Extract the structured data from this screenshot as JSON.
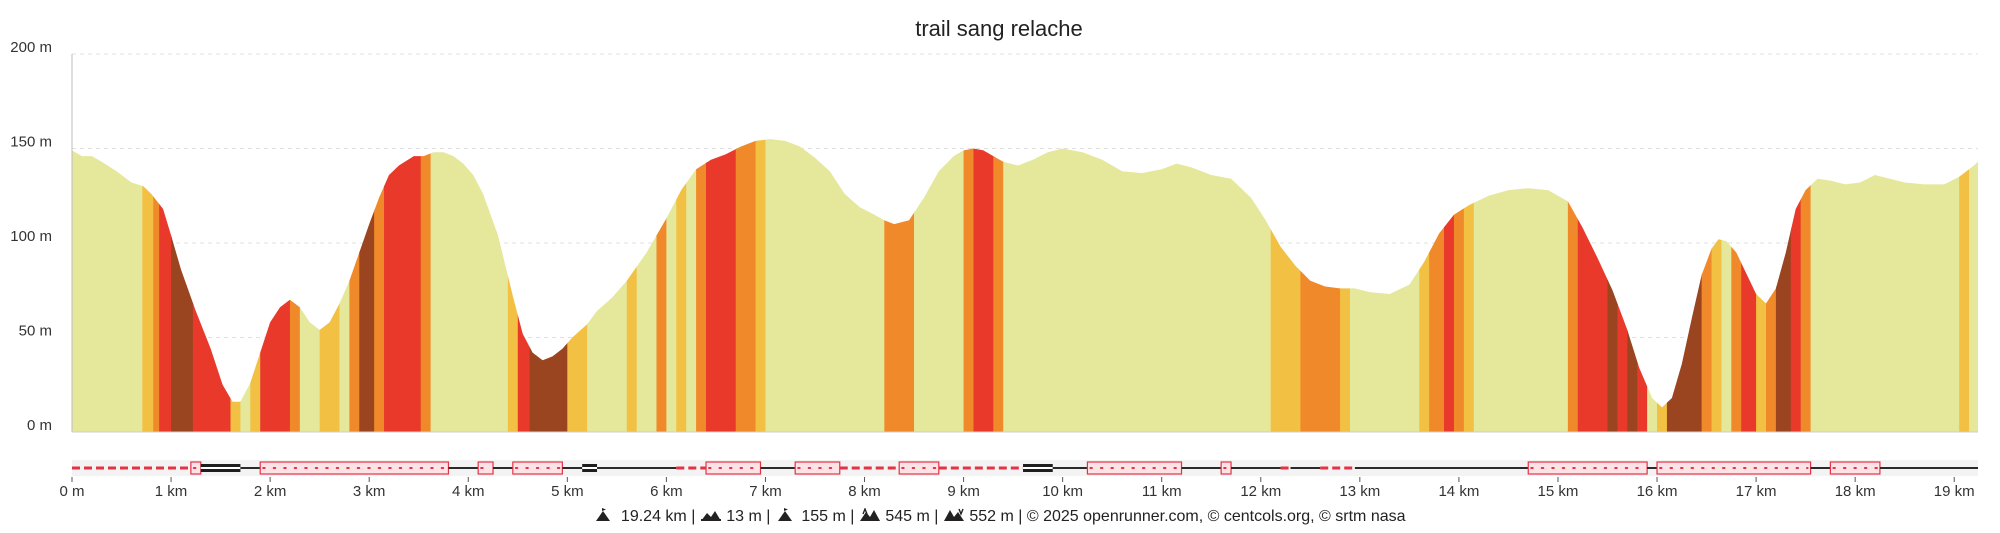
{
  "chart_data": {
    "type": "area",
    "title": "trail sang relache",
    "xlabel": "",
    "ylabel": "",
    "x_unit": "km",
    "y_unit": "m",
    "xlim": [
      0,
      19.24
    ],
    "ylim": [
      0,
      200
    ],
    "yticks": [
      "0 m",
      "50 m",
      "100 m",
      "150 m",
      "200 m"
    ],
    "xticks": [
      "0 m",
      "1 km",
      "2 km",
      "3 km",
      "4 km",
      "5 km",
      "6 km",
      "7 km",
      "8 km",
      "9 km",
      "10 km",
      "11 km",
      "12 km",
      "13 km",
      "14 km",
      "15 km",
      "16 km",
      "17 km",
      "18 km",
      "19 km"
    ],
    "grid": true,
    "series": [
      {
        "x": [
          0,
          0.1,
          0.2,
          0.3,
          0.45,
          0.6,
          0.72,
          0.8,
          0.92,
          1.0,
          1.1,
          1.25,
          1.4,
          1.52,
          1.62,
          1.7,
          1.8,
          1.9,
          2.0,
          2.1,
          2.2,
          2.3,
          2.4,
          2.5,
          2.6,
          2.7,
          2.8,
          2.9,
          3.0,
          3.1,
          3.2,
          3.3,
          3.45,
          3.55,
          3.65,
          3.75,
          3.85,
          3.95,
          4.05,
          4.15,
          4.3,
          4.45,
          4.55,
          4.65,
          4.75,
          4.85,
          4.95,
          5.05,
          5.2,
          5.3,
          5.45,
          5.6,
          5.8,
          6.0,
          6.15,
          6.3,
          6.45,
          6.6,
          6.75,
          6.9,
          7.05,
          7.2,
          7.35,
          7.5,
          7.65,
          7.8,
          7.95,
          8.1,
          8.2,
          8.3,
          8.45,
          8.6,
          8.75,
          8.9,
          9.0,
          9.1,
          9.2,
          9.3,
          9.4,
          9.55,
          9.7,
          9.85,
          10.0,
          10.2,
          10.4,
          10.6,
          10.8,
          11.0,
          11.15,
          11.3,
          11.5,
          11.7,
          11.9,
          12.05,
          12.2,
          12.35,
          12.5,
          12.65,
          12.8,
          12.95,
          13.1,
          13.3,
          13.5,
          13.65,
          13.8,
          13.95,
          14.1,
          14.3,
          14.5,
          14.7,
          14.9,
          15.1,
          15.25,
          15.4,
          15.55,
          15.7,
          15.82,
          15.95,
          16.05,
          16.15,
          16.25,
          16.35,
          16.45,
          16.55,
          16.62,
          16.7,
          16.8,
          16.9,
          17.0,
          17.1,
          17.2,
          17.3,
          17.4,
          17.5,
          17.62,
          17.75,
          17.9,
          18.05,
          18.2,
          18.35,
          18.5,
          18.7,
          18.9,
          19.05,
          19.2,
          19.24
        ],
        "y": [
          149,
          146,
          146,
          143,
          138,
          132,
          130,
          126,
          118,
          104,
          86,
          64,
          44,
          25,
          16,
          16,
          26,
          42,
          58,
          66,
          70,
          66,
          58,
          54,
          58,
          68,
          80,
          95,
          110,
          124,
          136,
          141,
          146,
          146,
          148,
          148,
          146,
          142,
          136,
          126,
          104,
          72,
          52,
          42,
          38,
          40,
          44,
          50,
          57,
          64,
          71,
          80,
          95,
          113,
          128,
          139,
          144,
          147,
          151,
          154,
          155,
          154,
          151,
          145,
          138,
          126,
          119,
          115,
          112,
          110,
          112,
          124,
          138,
          146,
          149,
          150,
          149,
          146,
          143,
          141,
          144,
          148,
          150,
          148,
          144,
          138,
          137,
          139,
          142,
          140,
          136,
          134,
          124,
          112,
          98,
          88,
          80,
          77,
          76,
          76,
          74,
          73,
          78,
          90,
          105,
          115,
          120,
          125,
          128,
          129,
          128,
          122,
          108,
          92,
          75,
          54,
          34,
          18,
          13,
          18,
          36,
          60,
          83,
          97,
          102,
          101,
          95,
          84,
          73,
          68,
          76,
          95,
          118,
          128,
          134,
          133,
          131,
          132,
          136,
          134,
          132,
          131,
          131,
          135,
          141,
          143
        ]
      }
    ],
    "slope_colors": {
      "flat": "#e5e79b",
      "gentle": "#f2c043",
      "moderate": "#f0892a",
      "steep": "#e8392a",
      "very_steep": "#9b4420"
    },
    "slope_bands": [
      [
        0,
        0.71,
        "flat"
      ],
      [
        0.71,
        0.82,
        "gentle"
      ],
      [
        0.82,
        0.88,
        "moderate"
      ],
      [
        0.88,
        1.0,
        "steep"
      ],
      [
        1.0,
        1.22,
        "very_steep"
      ],
      [
        1.22,
        1.6,
        "steep"
      ],
      [
        1.6,
        1.7,
        "gentle"
      ],
      [
        1.7,
        1.8,
        "flat"
      ],
      [
        1.8,
        1.9,
        "gentle"
      ],
      [
        1.9,
        2.2,
        "steep"
      ],
      [
        2.2,
        2.3,
        "moderate"
      ],
      [
        2.3,
        2.5,
        "flat"
      ],
      [
        2.5,
        2.7,
        "gentle"
      ],
      [
        2.7,
        2.8,
        "flat"
      ],
      [
        2.8,
        2.9,
        "moderate"
      ],
      [
        2.9,
        3.05,
        "very_steep"
      ],
      [
        3.05,
        3.15,
        "moderate"
      ],
      [
        3.15,
        3.52,
        "steep"
      ],
      [
        3.52,
        3.62,
        "moderate"
      ],
      [
        3.62,
        4.4,
        "flat"
      ],
      [
        4.4,
        4.5,
        "gentle"
      ],
      [
        4.5,
        4.62,
        "steep"
      ],
      [
        4.62,
        5.0,
        "very_steep"
      ],
      [
        5.0,
        5.2,
        "gentle"
      ],
      [
        5.2,
        5.6,
        "flat"
      ],
      [
        5.6,
        5.7,
        "gentle"
      ],
      [
        5.7,
        5.9,
        "flat"
      ],
      [
        5.9,
        6.0,
        "moderate"
      ],
      [
        6.0,
        6.1,
        "flat"
      ],
      [
        6.1,
        6.2,
        "gentle"
      ],
      [
        6.2,
        6.3,
        "flat"
      ],
      [
        6.3,
        6.4,
        "moderate"
      ],
      [
        6.4,
        6.7,
        "steep"
      ],
      [
        6.7,
        6.9,
        "moderate"
      ],
      [
        6.9,
        7.0,
        "gentle"
      ],
      [
        7.0,
        8.2,
        "flat"
      ],
      [
        8.2,
        8.5,
        "moderate"
      ],
      [
        8.5,
        9.0,
        "flat"
      ],
      [
        9.0,
        9.1,
        "moderate"
      ],
      [
        9.1,
        9.3,
        "steep"
      ],
      [
        9.3,
        9.4,
        "moderate"
      ],
      [
        9.4,
        12.1,
        "flat"
      ],
      [
        12.1,
        12.4,
        "gentle"
      ],
      [
        12.4,
        12.8,
        "moderate"
      ],
      [
        12.8,
        12.9,
        "gentle"
      ],
      [
        12.9,
        13.6,
        "flat"
      ],
      [
        13.6,
        13.7,
        "gentle"
      ],
      [
        13.7,
        13.85,
        "moderate"
      ],
      [
        13.85,
        13.95,
        "steep"
      ],
      [
        13.95,
        14.05,
        "moderate"
      ],
      [
        14.05,
        14.15,
        "gentle"
      ],
      [
        14.15,
        15.1,
        "flat"
      ],
      [
        15.1,
        15.2,
        "moderate"
      ],
      [
        15.2,
        15.5,
        "steep"
      ],
      [
        15.5,
        15.6,
        "very_steep"
      ],
      [
        15.6,
        15.7,
        "steep"
      ],
      [
        15.7,
        15.8,
        "very_steep"
      ],
      [
        15.8,
        15.9,
        "steep"
      ],
      [
        15.9,
        16.0,
        "flat"
      ],
      [
        16.0,
        16.1,
        "gentle"
      ],
      [
        16.1,
        16.45,
        "very_steep"
      ],
      [
        16.45,
        16.55,
        "moderate"
      ],
      [
        16.55,
        16.65,
        "gentle"
      ],
      [
        16.65,
        16.75,
        "flat"
      ],
      [
        16.75,
        16.85,
        "moderate"
      ],
      [
        16.85,
        17.0,
        "steep"
      ],
      [
        17.0,
        17.1,
        "gentle"
      ],
      [
        17.1,
        17.2,
        "moderate"
      ],
      [
        17.2,
        17.35,
        "very_steep"
      ],
      [
        17.35,
        17.45,
        "steep"
      ],
      [
        17.45,
        17.55,
        "moderate"
      ],
      [
        17.55,
        19.05,
        "flat"
      ],
      [
        19.05,
        19.15,
        "gentle"
      ],
      [
        19.15,
        19.24,
        "flat"
      ]
    ],
    "surface_strip": {
      "segments": [
        [
          0,
          1.2,
          "dashed"
        ],
        [
          1.2,
          1.3,
          "dotted"
        ],
        [
          1.3,
          1.7,
          "paved"
        ],
        [
          1.7,
          1.9,
          "track"
        ],
        [
          1.9,
          3.8,
          "dotted"
        ],
        [
          3.8,
          4.1,
          "track"
        ],
        [
          4.1,
          4.25,
          "dotted"
        ],
        [
          4.25,
          4.45,
          "track"
        ],
        [
          4.45,
          4.95,
          "dotted"
        ],
        [
          4.95,
          5.15,
          "track"
        ],
        [
          5.15,
          5.3,
          "paved"
        ],
        [
          5.3,
          6.1,
          "track"
        ],
        [
          6.1,
          6.4,
          "dashed"
        ],
        [
          6.4,
          6.95,
          "dotted"
        ],
        [
          6.95,
          7.3,
          "track"
        ],
        [
          7.3,
          7.75,
          "dotted"
        ],
        [
          7.75,
          8.35,
          "dashed"
        ],
        [
          8.35,
          8.75,
          "dotted"
        ],
        [
          8.75,
          9.6,
          "dashed"
        ],
        [
          9.6,
          9.9,
          "paved"
        ],
        [
          9.9,
          10.25,
          "track"
        ],
        [
          10.25,
          11.2,
          "dotted"
        ],
        [
          11.2,
          11.6,
          "track"
        ],
        [
          11.6,
          11.7,
          "dotted"
        ],
        [
          11.7,
          12.2,
          "track"
        ],
        [
          12.2,
          12.3,
          "dashed"
        ],
        [
          12.3,
          12.6,
          "track"
        ],
        [
          12.6,
          12.95,
          "dashed"
        ],
        [
          12.95,
          14.7,
          "track"
        ],
        [
          14.7,
          15.9,
          "dotted"
        ],
        [
          15.9,
          16.0,
          "track"
        ],
        [
          16.0,
          17.55,
          "dotted"
        ],
        [
          17.55,
          17.75,
          "track"
        ],
        [
          17.75,
          18.25,
          "dotted"
        ],
        [
          18.25,
          19.24,
          "track"
        ]
      ]
    }
  },
  "footer": {
    "distance": "19.24 km",
    "min_altitude": "13 m",
    "max_altitude": "155 m",
    "elevation_gain": "545 m",
    "elevation_loss": "552 m",
    "credits": "© 2025 openrunner.com, © centcols.org, © srtm nasa",
    "separator": "|"
  }
}
